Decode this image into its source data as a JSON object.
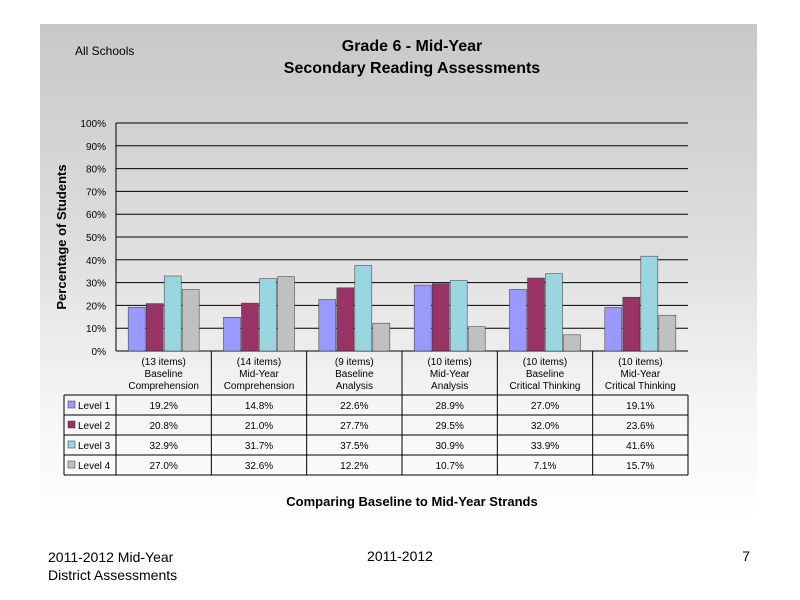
{
  "header": {
    "scope": "All Schools",
    "title_line1": "Grade 6 - Mid-Year",
    "title_line2": "Secondary Reading Assessments"
  },
  "chart_data": {
    "type": "bar",
    "title": "Grade 6 - Mid-Year Secondary Reading Assessments",
    "ylabel": "Percentage of Students",
    "xlabel": "Comparing Baseline to Mid-Year Strands",
    "ylim": [
      0,
      100
    ],
    "yticks": [
      "0%",
      "10%",
      "20%",
      "30%",
      "40%",
      "50%",
      "60%",
      "70%",
      "80%",
      "90%",
      "100%"
    ],
    "grid": true,
    "legend": "data-table-left",
    "categories": [
      {
        "items": "(13 items)",
        "line2": "Baseline",
        "line3": "Comprehension"
      },
      {
        "items": "(14 items)",
        "line2": "Mid-Year",
        "line3": "Comprehension"
      },
      {
        "items": "(9 items)",
        "line2": "Baseline",
        "line3": "Analysis"
      },
      {
        "items": "(10 items)",
        "line2": "Mid-Year",
        "line3": "Analysis"
      },
      {
        "items": "(10 items)",
        "line2": "Baseline",
        "line3": "Critical Thinking"
      },
      {
        "items": "(10 items)",
        "line2": "Mid-Year",
        "line3": "Critical Thinking"
      }
    ],
    "series": [
      {
        "name": "Level 1",
        "color": "#9999ff",
        "values": [
          19.2,
          14.8,
          22.6,
          28.9,
          27.0,
          19.1
        ],
        "labels": [
          "19.2%",
          "14.8%",
          "22.6%",
          "28.9%",
          "27.0%",
          "19.1%"
        ]
      },
      {
        "name": "Level 2",
        "color": "#993366",
        "values": [
          20.8,
          21.0,
          27.7,
          29.5,
          32.0,
          23.6
        ],
        "labels": [
          "20.8%",
          "21.0%",
          "27.7%",
          "29.5%",
          "32.0%",
          "23.6%"
        ]
      },
      {
        "name": "Level 3",
        "color": "#99d6e0",
        "values": [
          32.9,
          31.7,
          37.5,
          30.9,
          33.9,
          41.6
        ],
        "labels": [
          "32.9%",
          "31.7%",
          "37.5%",
          "30.9%",
          "33.9%",
          "41.6%"
        ]
      },
      {
        "name": "Level 4",
        "color": "#c0c0c0",
        "values": [
          27.0,
          32.6,
          12.2,
          10.7,
          7.1,
          15.7
        ],
        "labels": [
          "27.0%",
          "32.6%",
          "12.2%",
          "10.7%",
          "7.1%",
          "15.7%"
        ]
      }
    ]
  },
  "footer": {
    "left_line1": "2011-2012  Mid-Year",
    "left_line2": "District Assessments",
    "center": "2011-2012",
    "page": "7"
  }
}
